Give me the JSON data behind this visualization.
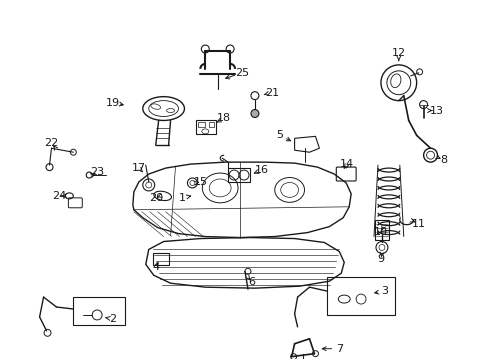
{
  "background_color": "#ffffff",
  "line_color": "#1a1a1a",
  "figsize": [
    4.89,
    3.6
  ],
  "dpi": 100,
  "xlim": [
    0,
    489
  ],
  "ylim": [
    360,
    0
  ]
}
